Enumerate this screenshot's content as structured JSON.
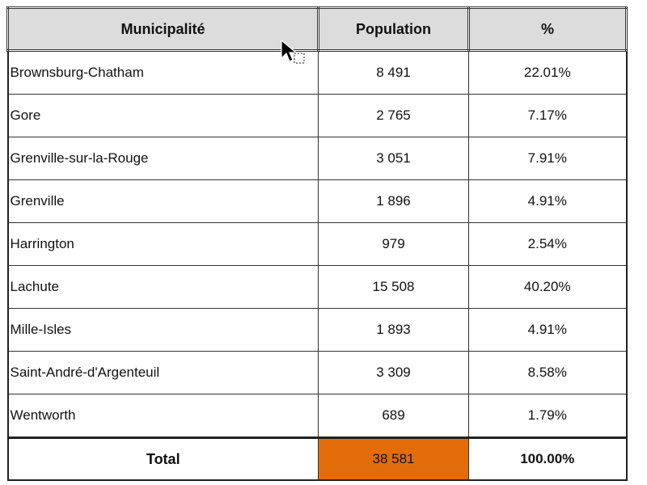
{
  "table": {
    "headers": [
      "Municipalité",
      "Population",
      "%"
    ],
    "rows": [
      {
        "municipality": "Brownsburg-Chatham",
        "population": "8 491",
        "percent": "22.01%"
      },
      {
        "municipality": "Gore",
        "population": "2 765",
        "percent": "7.17%"
      },
      {
        "municipality": "Grenville-sur-la-Rouge",
        "population": "3 051",
        "percent": "7.91%"
      },
      {
        "municipality": "Grenville",
        "population": "1 896",
        "percent": "4.91%"
      },
      {
        "municipality": "Harrington",
        "population": "979",
        "percent": "2.54%"
      },
      {
        "municipality": "Lachute",
        "population": "15 508",
        "percent": "40.20%"
      },
      {
        "municipality": "Mille-Isles",
        "population": "1 893",
        "percent": "4.91%"
      },
      {
        "municipality": "Saint-André-d'Argenteuil",
        "population": "3 309",
        "percent": "8.58%"
      },
      {
        "municipality": "Wentworth",
        "population": "689",
        "percent": "1.79%"
      }
    ],
    "total": {
      "label": "Total",
      "population": "38 581",
      "percent": "100.00%"
    }
  },
  "colors": {
    "header_bg": "#dcdcdc",
    "total_highlight": "#e36c0a"
  },
  "icons": {
    "cursor": "mouse-pointer-drag-icon"
  }
}
